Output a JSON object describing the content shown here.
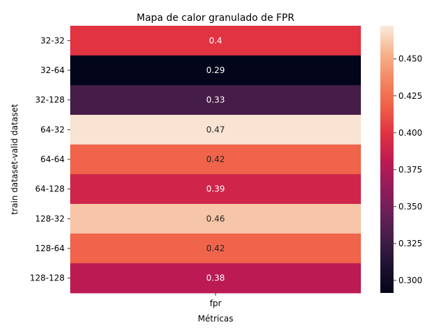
{
  "chart_data": {
    "type": "heatmap",
    "title": "Mapa de calor granulado de FPR",
    "xlabel": "Métricas",
    "ylabel": "train dataset-valid dataset",
    "columns": [
      "fpr"
    ],
    "rows": [
      "32-32",
      "32-64",
      "32-128",
      "64-32",
      "64-64",
      "64-128",
      "128-32",
      "128-64",
      "128-128"
    ],
    "values": [
      0.4,
      0.29,
      0.33,
      0.47,
      0.42,
      0.39,
      0.46,
      0.42,
      0.38
    ],
    "annotations": [
      "0.4",
      "0.29",
      "0.33",
      "0.47",
      "0.42",
      "0.39",
      "0.46",
      "0.42",
      "0.38"
    ],
    "colorbar": {
      "range": [
        0.2915,
        0.4725
      ],
      "ticks": [
        0.3,
        0.325,
        0.35,
        0.375,
        0.4,
        0.425,
        0.45
      ],
      "tick_labels": [
        "0.300",
        "0.325",
        "0.350",
        "0.375",
        "0.400",
        "0.425",
        "0.450"
      ],
      "colormap": "rocket"
    },
    "grid": false
  }
}
